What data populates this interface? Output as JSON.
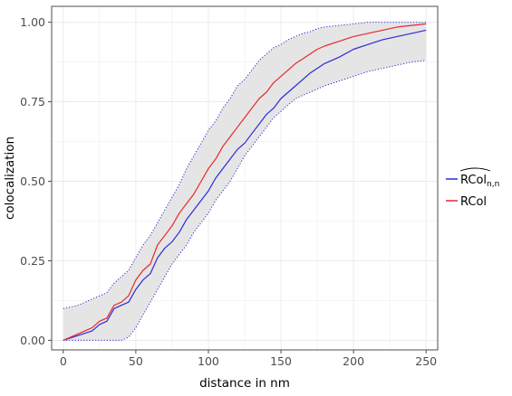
{
  "chart_data": {
    "type": "line",
    "title": "",
    "xlabel": "distance in nm",
    "ylabel": "colocalization",
    "xlim": [
      -8,
      258
    ],
    "ylim": [
      -0.03,
      1.05
    ],
    "x_ticks": [
      0,
      50,
      100,
      150,
      200,
      250
    ],
    "x_tick_labels": [
      "0",
      "50",
      "100",
      "150",
      "200",
      "250"
    ],
    "y_ticks": [
      0,
      0.25,
      0.5,
      0.75,
      1.0
    ],
    "y_tick_labels": [
      "0.00",
      "0.25",
      "0.50",
      "0.75",
      "1.00"
    ],
    "grid": true,
    "legend_position": "right",
    "band": {
      "x": [
        0,
        10,
        20,
        30,
        35,
        40,
        45,
        50,
        55,
        60,
        65,
        70,
        75,
        80,
        85,
        90,
        95,
        100,
        105,
        110,
        115,
        120,
        125,
        130,
        135,
        140,
        145,
        150,
        155,
        160,
        165,
        170,
        175,
        180,
        190,
        200,
        210,
        220,
        230,
        240,
        250
      ],
      "upper": [
        0.1,
        0.11,
        0.13,
        0.15,
        0.18,
        0.2,
        0.22,
        0.26,
        0.3,
        0.33,
        0.37,
        0.41,
        0.45,
        0.49,
        0.54,
        0.58,
        0.62,
        0.66,
        0.69,
        0.73,
        0.76,
        0.8,
        0.82,
        0.85,
        0.88,
        0.9,
        0.92,
        0.93,
        0.945,
        0.955,
        0.965,
        0.97,
        0.98,
        0.985,
        0.99,
        0.995,
        1.0,
        1.0,
        1.0,
        1.0,
        1.0
      ],
      "lower": [
        0.0,
        0.0,
        0.0,
        0.0,
        0.0,
        0.0,
        0.01,
        0.04,
        0.08,
        0.12,
        0.16,
        0.2,
        0.24,
        0.27,
        0.3,
        0.34,
        0.37,
        0.4,
        0.44,
        0.47,
        0.5,
        0.54,
        0.58,
        0.61,
        0.64,
        0.67,
        0.7,
        0.72,
        0.74,
        0.76,
        0.77,
        0.78,
        0.79,
        0.8,
        0.815,
        0.83,
        0.845,
        0.855,
        0.865,
        0.875,
        0.88
      ]
    },
    "series": [
      {
        "name": "RCol_n,n",
        "color": "#2b2bd9",
        "x": [
          0,
          10,
          20,
          25,
          30,
          35,
          40,
          45,
          50,
          55,
          60,
          65,
          70,
          75,
          80,
          85,
          90,
          95,
          100,
          105,
          110,
          115,
          120,
          125,
          130,
          135,
          140,
          145,
          150,
          155,
          160,
          165,
          170,
          175,
          180,
          190,
          200,
          210,
          220,
          230,
          240,
          250
        ],
        "y": [
          0.0,
          0.015,
          0.03,
          0.05,
          0.06,
          0.1,
          0.11,
          0.12,
          0.16,
          0.19,
          0.21,
          0.26,
          0.29,
          0.31,
          0.34,
          0.38,
          0.41,
          0.44,
          0.47,
          0.51,
          0.54,
          0.57,
          0.6,
          0.62,
          0.65,
          0.68,
          0.71,
          0.73,
          0.76,
          0.78,
          0.8,
          0.82,
          0.84,
          0.855,
          0.87,
          0.89,
          0.915,
          0.93,
          0.945,
          0.955,
          0.965,
          0.975
        ]
      },
      {
        "name": "RCol",
        "color": "#e8292b",
        "x": [
          0,
          10,
          20,
          25,
          30,
          35,
          40,
          45,
          50,
          55,
          60,
          65,
          70,
          75,
          80,
          85,
          90,
          95,
          100,
          105,
          110,
          115,
          120,
          125,
          130,
          135,
          140,
          145,
          150,
          155,
          160,
          165,
          170,
          175,
          180,
          190,
          200,
          210,
          220,
          230,
          240,
          250
        ],
        "y": [
          0.0,
          0.02,
          0.04,
          0.06,
          0.07,
          0.11,
          0.12,
          0.14,
          0.19,
          0.22,
          0.24,
          0.3,
          0.33,
          0.36,
          0.4,
          0.43,
          0.46,
          0.5,
          0.54,
          0.57,
          0.61,
          0.64,
          0.67,
          0.7,
          0.73,
          0.76,
          0.78,
          0.81,
          0.83,
          0.85,
          0.87,
          0.885,
          0.9,
          0.915,
          0.925,
          0.94,
          0.955,
          0.965,
          0.975,
          0.985,
          0.99,
          0.995
        ]
      }
    ],
    "colors": {
      "band_fill": "#e5e5e5",
      "band_border": "#2b2bd9",
      "panel_border": "#4d4d4d",
      "grid": "#ebebeb"
    }
  },
  "legend": [
    {
      "base": "RCol",
      "subscript": "n,n",
      "hat": true,
      "color": "#2b2bd9"
    },
    {
      "base": "RCol",
      "subscript": "",
      "hat": false,
      "color": "#e8292b"
    }
  ]
}
